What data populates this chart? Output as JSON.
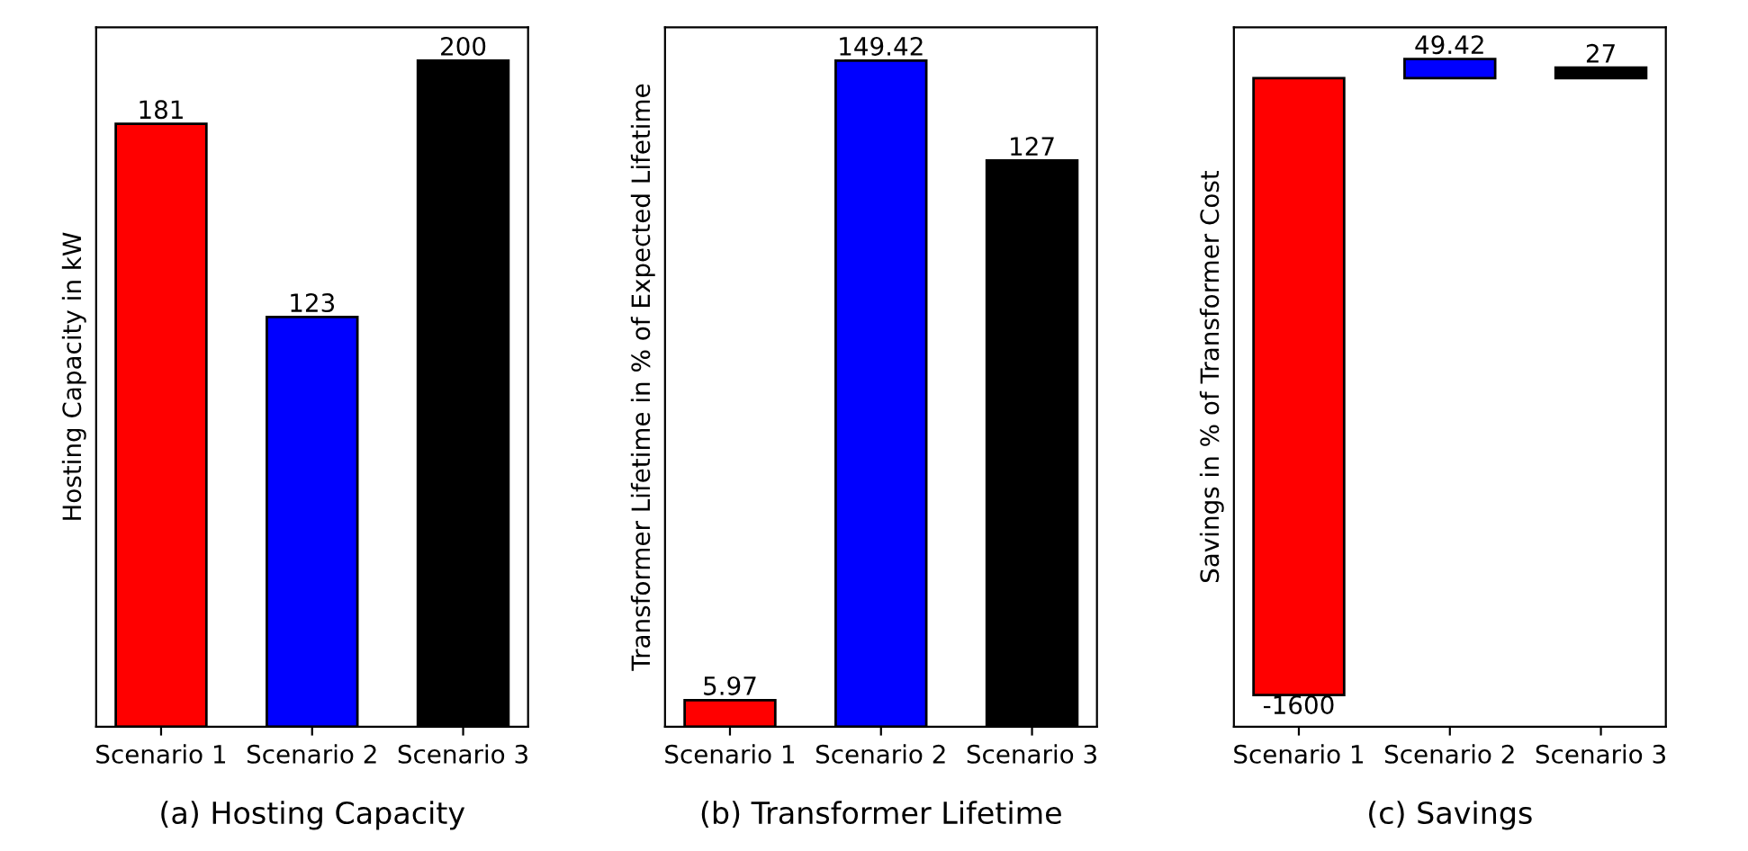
{
  "chart_data": [
    {
      "type": "bar",
      "title": "(a) Hosting Capacity",
      "ylabel": "Hosting Capacity in kW",
      "categories": [
        "Scenario 1",
        "Scenario 2",
        "Scenario 3"
      ],
      "values": [
        181,
        123,
        200
      ],
      "ylim": [
        0,
        210
      ],
      "colors": [
        "#ff0000",
        "#0000ff",
        "#000000"
      ],
      "data_labels": true,
      "tick_labels": "x",
      "grid": false,
      "legend": false
    },
    {
      "type": "bar",
      "title": "(b) Transformer Lifetime",
      "ylabel": "Transformer Lifetime in % of Expected Lifetime",
      "categories": [
        "Scenario 1",
        "Scenario 2",
        "Scenario 3"
      ],
      "values": [
        5.97,
        149.42,
        127
      ],
      "ylim": [
        0,
        156.9
      ],
      "colors": [
        "#ff0000",
        "#0000ff",
        "#000000"
      ],
      "data_labels": true,
      "tick_labels": "x",
      "grid": false,
      "legend": false
    },
    {
      "type": "bar",
      "title": "(c) Savings",
      "ylabel": "Savings in % of Transformer Cost",
      "categories": [
        "Scenario 1",
        "Scenario 2",
        "Scenario 3"
      ],
      "values": [
        -1600,
        49.42,
        27
      ],
      "ylim": [
        -1682.5,
        131.9
      ],
      "colors": [
        "#ff0000",
        "#0000ff",
        "#000000"
      ],
      "data_labels": true,
      "tick_labels": "x",
      "grid": false,
      "legend": false
    }
  ]
}
